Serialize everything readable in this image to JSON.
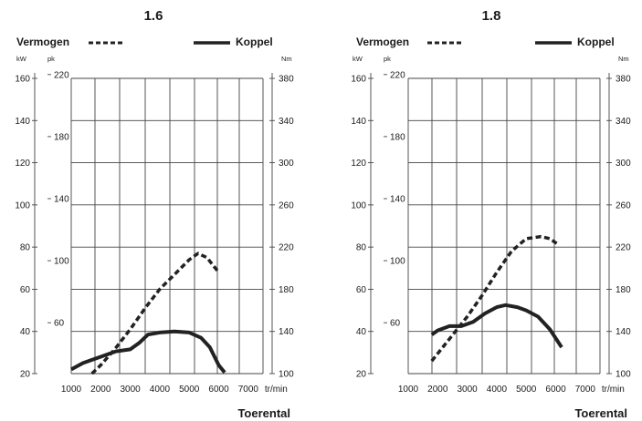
{
  "chart_data": [
    {
      "type": "line",
      "title": "1.6",
      "xlabel": "Toerental",
      "x_unit": "tr/min",
      "x_ticks": [
        1000,
        2000,
        3000,
        4000,
        5000,
        6000,
        7000
      ],
      "xlim": [
        1000,
        7500
      ],
      "kw_axis": {
        "unit": "kW",
        "ticks": [
          20,
          40,
          60,
          80,
          100,
          120,
          140,
          160
        ],
        "range": [
          20,
          160
        ]
      },
      "pk_axis": {
        "unit": "pk",
        "ticks": [
          60,
          100,
          140,
          180,
          220
        ]
      },
      "nm_axis": {
        "unit": "Nm",
        "ticks": [
          100,
          140,
          180,
          220,
          260,
          300,
          340,
          380
        ],
        "range": [
          100,
          380
        ]
      },
      "grid": true,
      "series": [
        {
          "name": "Vermogen",
          "axis": "kW",
          "style": "dashed",
          "x": [
            1700,
            2000,
            2500,
            3000,
            3500,
            4000,
            4500,
            5000,
            5300,
            5600,
            6000
          ],
          "values": [
            20,
            24,
            32,
            41,
            51,
            60,
            67,
            74,
            77,
            75,
            68
          ]
        },
        {
          "name": "Koppel",
          "axis": "Nm",
          "style": "solid",
          "x": [
            1000,
            1400,
            2000,
            2500,
            3000,
            3300,
            3600,
            4000,
            4500,
            5000,
            5400,
            5700,
            6000,
            6200
          ],
          "values": [
            104,
            110,
            116,
            121,
            123,
            129,
            137,
            139,
            140,
            139,
            134,
            125,
            108,
            101
          ]
        }
      ]
    },
    {
      "type": "line",
      "title": "1.8",
      "xlabel": "Toerental",
      "x_unit": "tr/min",
      "x_ticks": [
        1000,
        2000,
        3000,
        4000,
        5000,
        6000,
        7000
      ],
      "xlim": [
        1000,
        7500
      ],
      "kw_axis": {
        "unit": "kW",
        "ticks": [
          20,
          40,
          60,
          80,
          100,
          120,
          140,
          160
        ],
        "range": [
          20,
          160
        ]
      },
      "pk_axis": {
        "unit": "pk",
        "ticks": [
          60,
          100,
          140,
          180,
          220
        ]
      },
      "nm_axis": {
        "unit": "Nm",
        "ticks": [
          100,
          140,
          180,
          220,
          260,
          300,
          340,
          380
        ],
        "range": [
          100,
          380
        ]
      },
      "grid": true,
      "series": [
        {
          "name": "Vermogen",
          "axis": "kW",
          "style": "dashed",
          "x": [
            1800,
            2200,
            2600,
            3000,
            3500,
            4000,
            4500,
            5000,
            5500,
            5800,
            6100
          ],
          "values": [
            26,
            33,
            40,
            47,
            57,
            68,
            78,
            84,
            85,
            84,
            81
          ]
        },
        {
          "name": "Koppel",
          "axis": "Nm",
          "style": "solid",
          "x": [
            1800,
            2000,
            2400,
            2800,
            3200,
            3600,
            4000,
            4300,
            4700,
            5000,
            5400,
            5800,
            6200
          ],
          "values": [
            137,
            141,
            145,
            145,
            149,
            157,
            163,
            165,
            163,
            160,
            154,
            142,
            125
          ]
        }
      ]
    }
  ]
}
